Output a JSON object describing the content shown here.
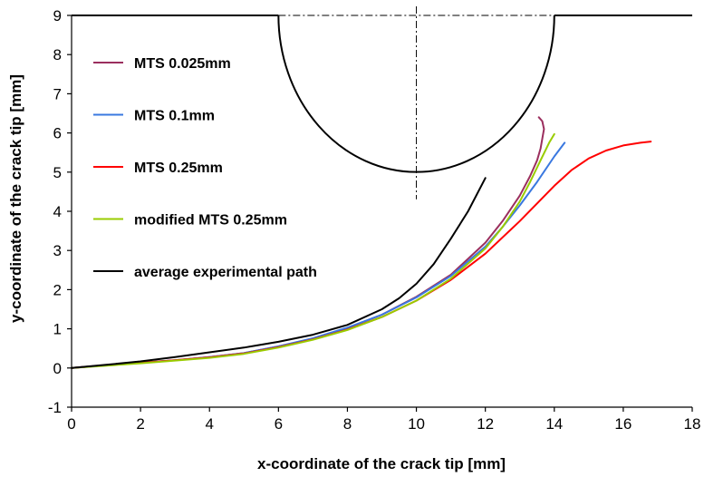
{
  "chart_data": {
    "type": "line",
    "xlabel": "x-coordinate of the crack tip [mm]",
    "ylabel": "y-coordinate of the crack tip [mm]",
    "xlim": [
      0,
      18
    ],
    "ylim": [
      -1,
      9
    ],
    "xticks": [
      0,
      2,
      4,
      6,
      8,
      10,
      12,
      14,
      16,
      18
    ],
    "yticks": [
      -1,
      0,
      1,
      2,
      3,
      4,
      5,
      6,
      7,
      8,
      9
    ],
    "grid": false,
    "legend_position": "top-left",
    "series": [
      {
        "name": "MTS 0.025mm",
        "color": "#9B2F5E",
        "x": [
          0,
          1,
          2,
          3,
          4,
          5,
          6,
          7,
          8,
          9,
          10,
          11,
          12,
          12.5,
          13,
          13.3,
          13.5,
          13.6,
          13.65,
          13.7,
          13.65,
          13.55
        ],
        "y": [
          0,
          0.07,
          0.14,
          0.2,
          0.28,
          0.38,
          0.55,
          0.75,
          1.02,
          1.36,
          1.82,
          2.38,
          3.2,
          3.75,
          4.4,
          4.9,
          5.3,
          5.6,
          5.85,
          6.1,
          6.3,
          6.4
        ]
      },
      {
        "name": "MTS 0.1mm",
        "color": "#3A78E0",
        "x": [
          0,
          1,
          2,
          3,
          4,
          5,
          6,
          7,
          8,
          9,
          10,
          11,
          12,
          12.5,
          13,
          13.5,
          14,
          14.3
        ],
        "y": [
          0,
          0.07,
          0.13,
          0.2,
          0.28,
          0.38,
          0.55,
          0.76,
          1.03,
          1.36,
          1.8,
          2.35,
          3.1,
          3.6,
          4.15,
          4.75,
          5.4,
          5.75
        ]
      },
      {
        "name": "MTS 0.25mm",
        "color": "#FF0000",
        "x": [
          0,
          1,
          2,
          3,
          4,
          5,
          6,
          7,
          8,
          9,
          10,
          11,
          12,
          13,
          14,
          14.5,
          15,
          15.5,
          16,
          16.5,
          16.8
        ],
        "y": [
          0,
          0.07,
          0.13,
          0.2,
          0.27,
          0.37,
          0.53,
          0.73,
          0.98,
          1.3,
          1.72,
          2.25,
          2.92,
          3.75,
          4.65,
          5.05,
          5.35,
          5.55,
          5.68,
          5.75,
          5.78
        ]
      },
      {
        "name": "modified MTS 0.25mm",
        "color": "#99CC00",
        "x": [
          0,
          1,
          2,
          3,
          4,
          5,
          6,
          7,
          8,
          9,
          10,
          11,
          12,
          12.5,
          13,
          13.3,
          13.6,
          13.85,
          14
        ],
        "y": [
          0,
          0.06,
          0.12,
          0.19,
          0.26,
          0.36,
          0.52,
          0.72,
          0.97,
          1.3,
          1.72,
          2.28,
          3.05,
          3.6,
          4.25,
          4.75,
          5.3,
          5.75,
          5.97
        ]
      },
      {
        "name": "average experimental path",
        "color": "#000000",
        "x": [
          0,
          1,
          2,
          3,
          4,
          5,
          6,
          7,
          8,
          9,
          9.5,
          10,
          10.5,
          11,
          11.5,
          12
        ],
        "y": [
          0,
          0.08,
          0.17,
          0.28,
          0.4,
          0.52,
          0.67,
          0.85,
          1.1,
          1.5,
          1.78,
          2.15,
          2.65,
          3.3,
          4.0,
          4.85
        ]
      }
    ],
    "notch": {
      "center_x": 10,
      "radius": 4,
      "top_y": 9,
      "bottom_y": 5,
      "color": "#000000"
    },
    "axis_color": "#000000",
    "background": "#ffffff"
  }
}
